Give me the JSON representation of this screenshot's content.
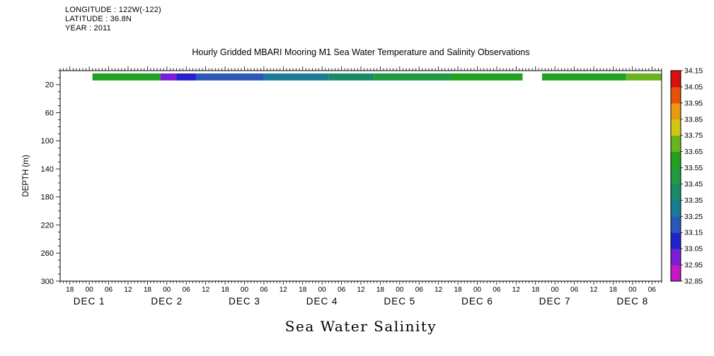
{
  "header": {
    "longitude": "LONGITUDE : 122W(-122)",
    "latitude": "LATITUDE : 36.8N",
    "year": "YEAR : 2011"
  },
  "chart_data": {
    "type": "heatmap",
    "title": "Hourly Gridded MBARI Mooring M1 Sea Water Temperature and Salinity Observations",
    "variable_label": "Sea Water Salinity",
    "y_axis": {
      "label": "DEPTH (m)",
      "range": [
        0,
        300
      ],
      "ticks": [
        20,
        60,
        100,
        140,
        180,
        220,
        260,
        300
      ],
      "minor_tick_interval": 10
    },
    "x_axis": {
      "hours_range": [
        -9,
        177
      ],
      "reference": "hours relative to 2011-12-01 00:00",
      "first_labeled_hour": -6,
      "label_step_hours": 6,
      "minor_tick_interval_hours": 1,
      "hour_tick_labels": [
        "18",
        "00",
        "06",
        "12",
        "18",
        "00",
        "06",
        "12",
        "18",
        "00",
        "06",
        "12",
        "18",
        "00",
        "06",
        "12",
        "18",
        "00",
        "06",
        "12",
        "18",
        "00",
        "06",
        "12",
        "18",
        "00",
        "06",
        "12",
        "18",
        "00",
        "06"
      ],
      "day_labels": [
        {
          "label": "DEC 1",
          "hour": 0
        },
        {
          "label": "DEC 2",
          "hour": 24
        },
        {
          "label": "DEC 3",
          "hour": 48
        },
        {
          "label": "DEC 4",
          "hour": 72
        },
        {
          "label": "DEC 5",
          "hour": 96
        },
        {
          "label": "DEC 6",
          "hour": 120
        },
        {
          "label": "DEC 7",
          "hour": 144
        },
        {
          "label": "DEC 8",
          "hour": 168
        }
      ]
    },
    "band_depth_range_m": [
      4,
      14
    ],
    "band_segments": [
      {
        "t0": 1,
        "t1": 22,
        "salinity": 33.55,
        "color": "#22a022"
      },
      {
        "t0": 22,
        "t1": 27,
        "salinity": 33.0,
        "color": "#7a1fd8"
      },
      {
        "t0": 27,
        "t1": 33,
        "salinity": 33.1,
        "color": "#2323cb"
      },
      {
        "t0": 33,
        "t1": 54,
        "salinity": 33.2,
        "color": "#2a57b8"
      },
      {
        "t0": 54,
        "t1": 74,
        "salinity": 33.3,
        "color": "#1b7a96"
      },
      {
        "t0": 74,
        "t1": 88,
        "salinity": 33.4,
        "color": "#188a66"
      },
      {
        "t0": 88,
        "t1": 112,
        "salinity": 33.5,
        "color": "#1e9a40"
      },
      {
        "t0": 112,
        "t1": 134,
        "salinity": 33.55,
        "color": "#22a022"
      },
      {
        "t0": 140,
        "t1": 166,
        "salinity": 33.55,
        "color": "#22a022"
      },
      {
        "t0": 166,
        "t1": 177,
        "salinity": 33.7,
        "color": "#6ab31e"
      }
    ],
    "colorbar": {
      "ticks": [
        "32.85",
        "32.95",
        "33.05",
        "33.15",
        "33.25",
        "33.35",
        "33.45",
        "33.55",
        "33.65",
        "33.75",
        "33.85",
        "33.95",
        "34.05",
        "34.15"
      ],
      "colors_bottom_to_top": [
        "#c617c6",
        "#7a1fd8",
        "#2323cb",
        "#2a57b8",
        "#1b7a96",
        "#188a66",
        "#1e9a40",
        "#22a022",
        "#6ab31e",
        "#cfc813",
        "#e89a10",
        "#e8500e",
        "#d81010"
      ]
    }
  }
}
